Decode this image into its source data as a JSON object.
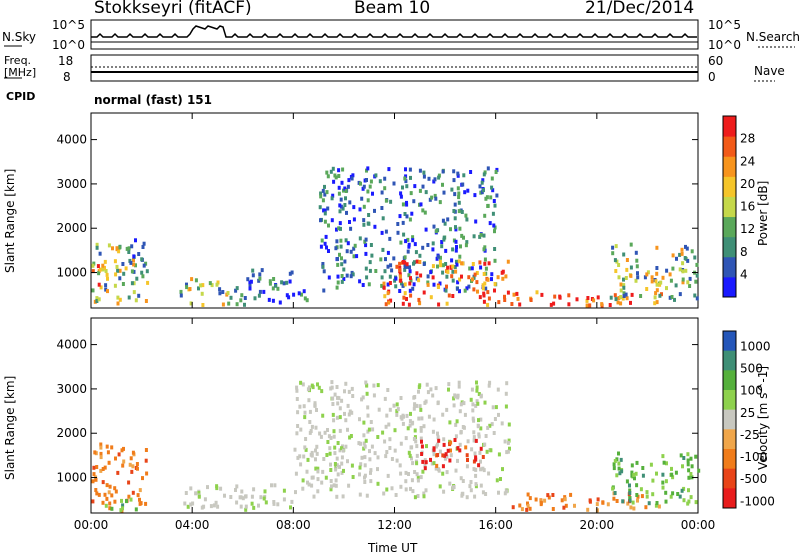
{
  "header": {
    "station": "Stokkseyri (fitACF)",
    "beam": "Beam 10",
    "date": "21/Dec/2014"
  },
  "noise_panel": {
    "left_label": "N.Sky",
    "left_tick_top": "10^5",
    "left_tick_bottom": "10^0",
    "right_tick_top": "10^5",
    "right_tick_bottom": "10^0",
    "right_label": "N.Search"
  },
  "freq_panel": {
    "left_label_1": "Freq.",
    "left_label_2": "[MHz]",
    "left_tick_top": "18",
    "left_tick_bottom": "8",
    "right_tick_top": "60",
    "right_tick_bottom": "0",
    "right_label": "Nave"
  },
  "cpid": {
    "label": "CPID",
    "value": "normal (fast) 151"
  },
  "colors": {
    "power_scale": [
      "#1a1aff",
      "#2f55b5",
      "#3f8f76",
      "#5aa85a",
      "#c5d84a",
      "#f5c52a",
      "#f7941d",
      "#f25a18",
      "#ee1c1c"
    ],
    "velocity_scale": [
      "#2456b9",
      "#3f8f76",
      "#55b03c",
      "#8ed14d",
      "#c8c8c0",
      "#f0a64a",
      "#f07c1a",
      "#e84418",
      "#e81c1c"
    ]
  },
  "chart_data": [
    {
      "type": "heatmap",
      "title": "",
      "ylabel": "Slant Range [km]",
      "ylim": [
        200,
        4600
      ],
      "yticks": [
        "1000",
        "2000",
        "3000",
        "4000"
      ],
      "colorbar_label": "Power [dB]",
      "colorbar_ticks": [
        "4",
        "8",
        "12",
        "16",
        "20",
        "24",
        "28"
      ],
      "colorbar_range": [
        0,
        32
      ],
      "regions": [
        {
          "t0": 0.0,
          "t1": 2.2,
          "r0": 300,
          "r1": 1700,
          "level": "medium"
        },
        {
          "t0": 0.0,
          "t1": 0.6,
          "r0": 700,
          "r1": 1300,
          "level": "high"
        },
        {
          "t0": 1.5,
          "t1": 2.1,
          "r0": 800,
          "r1": 1800,
          "level": "low"
        },
        {
          "t0": 3.5,
          "t1": 6.0,
          "r0": 300,
          "r1": 900,
          "level": "medium"
        },
        {
          "t0": 6.0,
          "t1": 8.5,
          "r0": 300,
          "r1": 1100,
          "level": "low"
        },
        {
          "t0": 9.0,
          "t1": 16.0,
          "r0": 600,
          "r1": 3400,
          "level": "low"
        },
        {
          "t0": 11.5,
          "t1": 16.5,
          "r0": 300,
          "r1": 1300,
          "level": "high"
        },
        {
          "t0": 16.5,
          "t1": 22.5,
          "r0": 300,
          "r1": 600,
          "level": "high"
        },
        {
          "t0": 20.5,
          "t1": 24.0,
          "r0": 400,
          "r1": 1700,
          "level": "medium"
        }
      ]
    },
    {
      "type": "heatmap",
      "title": "",
      "xlabel": "Time UT",
      "ylabel": "Slant Range [km]",
      "ylim": [
        200,
        4600
      ],
      "yticks": [
        "1000",
        "2000",
        "3000",
        "4000"
      ],
      "xticks": [
        "00:00",
        "04:00",
        "08:00",
        "12:00",
        "16:00",
        "20:00",
        "00:00"
      ],
      "xlim": [
        0,
        24
      ],
      "colorbar_label": "Velocity [m s^-1]",
      "colorbar_ticks": [
        "1000",
        "500",
        "100",
        "25",
        "-25",
        "-100",
        "-500",
        "-1000"
      ],
      "regions": [
        {
          "t0": 0.0,
          "t1": 2.2,
          "r0": 300,
          "r1": 1800,
          "level": "orange"
        },
        {
          "t0": 0.5,
          "t1": 2.0,
          "r0": 300,
          "r1": 600,
          "level": "green"
        },
        {
          "t0": 3.5,
          "t1": 8.0,
          "r0": 300,
          "r1": 900,
          "level": "grey"
        },
        {
          "t0": 8.0,
          "t1": 16.5,
          "r0": 600,
          "r1": 3200,
          "level": "grey"
        },
        {
          "t0": 13.0,
          "t1": 15.5,
          "r0": 1200,
          "r1": 1900,
          "level": "red"
        },
        {
          "t0": 16.5,
          "t1": 22.5,
          "r0": 300,
          "r1": 700,
          "level": "orange"
        },
        {
          "t0": 20.5,
          "t1": 24.0,
          "r0": 400,
          "r1": 1600,
          "level": "green"
        }
      ]
    }
  ]
}
